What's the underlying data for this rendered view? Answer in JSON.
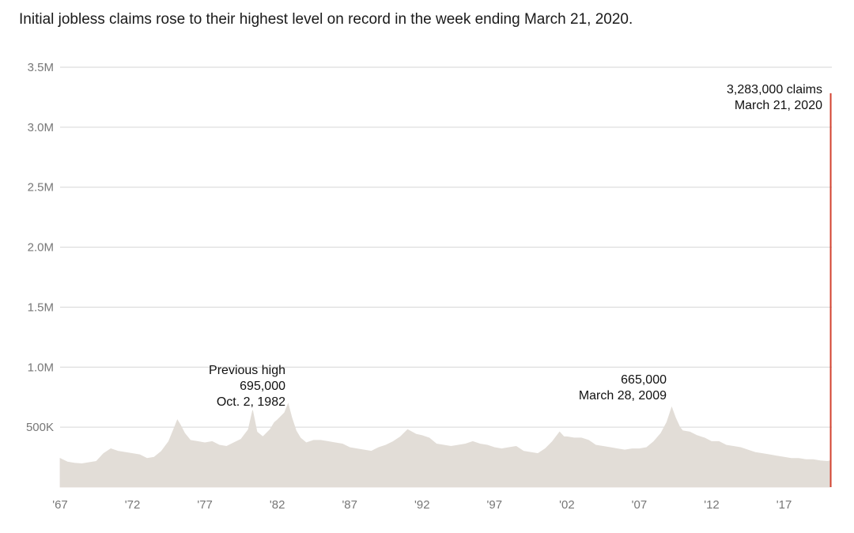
{
  "subtitle": "Initial jobless claims rose to their highest level on record in the week ending March 21, 2020.",
  "colors": {
    "area": "#e2ddd7",
    "highlight": "#d2412f",
    "grid": "#d6d6d6",
    "tick": "#777777"
  },
  "chart_data": {
    "type": "area",
    "title": "",
    "subtitle": "Initial jobless claims rose to their highest level on record in the week ending March 21, 2020.",
    "xlabel": "",
    "ylabel": "",
    "ylim": [
      0,
      3500000
    ],
    "xlim": [
      1967,
      2020.3
    ],
    "grid": true,
    "y_ticks": [
      {
        "value": 500000,
        "label": "500K"
      },
      {
        "value": 1000000,
        "label": "1.0M"
      },
      {
        "value": 1500000,
        "label": "1.5M"
      },
      {
        "value": 2000000,
        "label": "2.0M"
      },
      {
        "value": 2500000,
        "label": "2.5M"
      },
      {
        "value": 3000000,
        "label": "3.0M"
      },
      {
        "value": 3500000,
        "label": "3.5M"
      }
    ],
    "x_ticks": [
      {
        "value": 1967,
        "label": "'67"
      },
      {
        "value": 1972,
        "label": "'72"
      },
      {
        "value": 1977,
        "label": "'77"
      },
      {
        "value": 1982,
        "label": "'82"
      },
      {
        "value": 1987,
        "label": "'87"
      },
      {
        "value": 1992,
        "label": "'92"
      },
      {
        "value": 1997,
        "label": "'97"
      },
      {
        "value": 2002,
        "label": "'02"
      },
      {
        "value": 2007,
        "label": "'07"
      },
      {
        "value": 2012,
        "label": "'12"
      },
      {
        "value": 2017,
        "label": "'17"
      }
    ],
    "series": [
      {
        "x": [
          1967.0,
          1967.5,
          1968.0,
          1968.5,
          1969.0,
          1969.5,
          1970.0,
          1970.5,
          1971.0,
          1971.5,
          1972.0,
          1972.5,
          1973.0,
          1973.5,
          1974.0,
          1974.5,
          1974.9,
          1975.1,
          1975.3,
          1975.6,
          1976.0,
          1976.5,
          1977.0,
          1977.5,
          1978.0,
          1978.5,
          1979.0,
          1979.5,
          1980.0,
          1980.3,
          1980.6,
          1981.0,
          1981.5,
          1981.8,
          1982.0,
          1982.5,
          1982.75,
          1983.0,
          1983.3,
          1983.6,
          1984.0,
          1984.5,
          1985.0,
          1985.5,
          1986.0,
          1986.5,
          1987.0,
          1987.5,
          1988.0,
          1988.5,
          1989.0,
          1989.5,
          1990.0,
          1990.5,
          1991.0,
          1991.3,
          1991.6,
          1992.0,
          1992.5,
          1993.0,
          1993.5,
          1994.0,
          1994.5,
          1995.0,
          1995.5,
          1996.0,
          1996.5,
          1997.0,
          1997.5,
          1998.0,
          1998.5,
          1999.0,
          1999.5,
          2000.0,
          2000.5,
          2001.0,
          2001.5,
          2001.8,
          2002.0,
          2002.5,
          2003.0,
          2003.5,
          2004.0,
          2004.5,
          2005.0,
          2005.5,
          2006.0,
          2006.5,
          2007.0,
          2007.5,
          2008.0,
          2008.5,
          2008.9,
          2009.24,
          2009.5,
          2009.8,
          2010.0,
          2010.5,
          2011.0,
          2011.5,
          2012.0,
          2012.5,
          2013.0,
          2013.5,
          2014.0,
          2014.5,
          2015.0,
          2015.5,
          2016.0,
          2016.5,
          2017.0,
          2017.5,
          2018.0,
          2018.5,
          2019.0,
          2019.5,
          2020.0,
          2020.15
        ],
        "values": [
          240000,
          210000,
          200000,
          195000,
          205000,
          215000,
          280000,
          320000,
          300000,
          290000,
          280000,
          270000,
          240000,
          250000,
          300000,
          380000,
          500000,
          560000,
          520000,
          450000,
          390000,
          380000,
          370000,
          380000,
          350000,
          340000,
          370000,
          400000,
          480000,
          640000,
          460000,
          420000,
          480000,
          540000,
          560000,
          620000,
          695000,
          580000,
          470000,
          410000,
          370000,
          390000,
          390000,
          380000,
          370000,
          360000,
          330000,
          320000,
          310000,
          300000,
          330000,
          350000,
          380000,
          420000,
          480000,
          460000,
          440000,
          430000,
          410000,
          360000,
          350000,
          340000,
          350000,
          360000,
          380000,
          360000,
          350000,
          330000,
          320000,
          330000,
          340000,
          300000,
          290000,
          280000,
          320000,
          380000,
          460000,
          420000,
          420000,
          410000,
          410000,
          390000,
          350000,
          340000,
          330000,
          320000,
          310000,
          320000,
          320000,
          330000,
          380000,
          450000,
          540000,
          665000,
          580000,
          500000,
          470000,
          460000,
          430000,
          410000,
          380000,
          380000,
          350000,
          340000,
          330000,
          310000,
          290000,
          280000,
          270000,
          260000,
          250000,
          240000,
          240000,
          230000,
          230000,
          220000,
          215000,
          220000
        ]
      }
    ],
    "highlight": {
      "date": "March 21, 2020",
      "x": 2020.22,
      "value": 3283000
    },
    "annotations": [
      {
        "lines": [
          "3,283,000 claims",
          "March 21, 2020"
        ]
      },
      {
        "lines": [
          "Previous high",
          "695,000",
          "Oct. 2, 1982"
        ]
      },
      {
        "lines": [
          "665,000",
          "March 28, 2009"
        ]
      }
    ]
  }
}
